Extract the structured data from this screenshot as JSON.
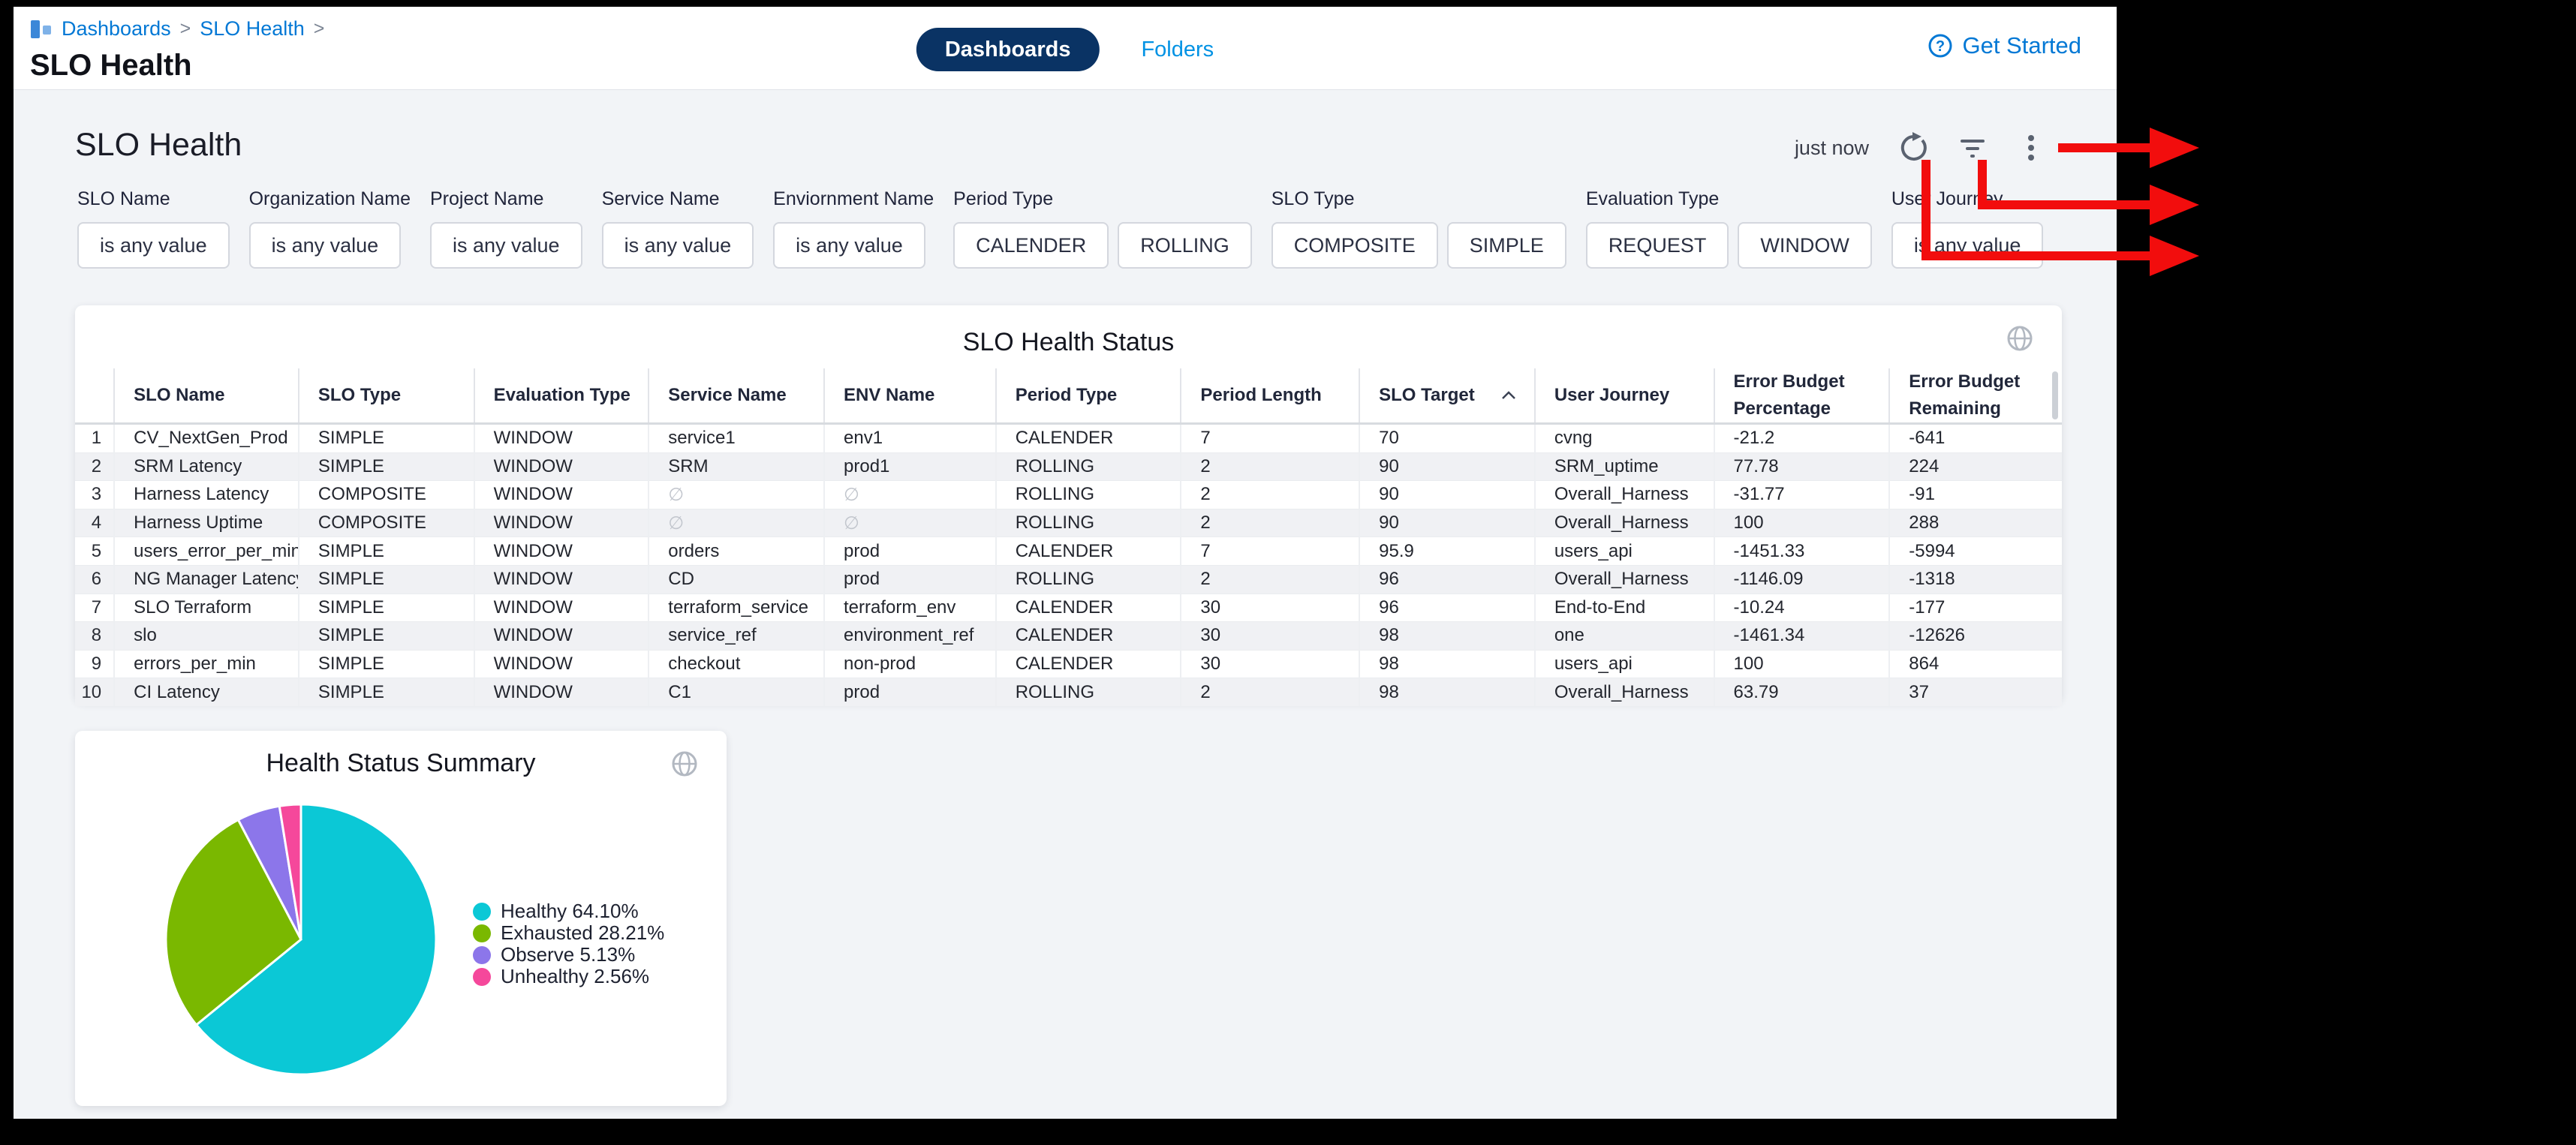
{
  "header": {
    "breadcrumb": {
      "items": [
        "Dashboards",
        "SLO Health"
      ],
      "separator": ">"
    },
    "page_title": "SLO Health",
    "tabs": [
      {
        "label": "Dashboards",
        "active": true
      },
      {
        "label": "Folders",
        "active": false
      }
    ],
    "get_started_label": "Get Started"
  },
  "toolbar": {
    "dashboard_title": "SLO Health",
    "refreshed_label": "just now",
    "icons": [
      "refresh-icon",
      "filter-icon",
      "kebab-menu-icon"
    ]
  },
  "filters": {
    "groups": [
      {
        "label": "SLO Name",
        "chips": [
          "is any value"
        ]
      },
      {
        "label": "Organization Name",
        "chips": [
          "is any value"
        ]
      },
      {
        "label": "Project Name",
        "chips": [
          "is any value"
        ]
      },
      {
        "label": "Service Name",
        "chips": [
          "is any value"
        ]
      },
      {
        "label": "Enviornment Name",
        "chips": [
          "is any value"
        ]
      },
      {
        "label": "Period Type",
        "chips": [
          "CALENDER",
          "ROLLING"
        ]
      },
      {
        "label": "SLO Type",
        "chips": [
          "COMPOSITE",
          "SIMPLE"
        ]
      },
      {
        "label": "Evaluation Type",
        "chips": [
          "REQUEST",
          "WINDOW"
        ]
      },
      {
        "label": "User Journey",
        "chips": [
          "is any value"
        ]
      }
    ]
  },
  "table": {
    "title": "SLO Health Status",
    "columns": [
      {
        "lines": [
          "SLO Name"
        ]
      },
      {
        "lines": [
          "SLO Type"
        ]
      },
      {
        "lines": [
          "Evaluation Type"
        ]
      },
      {
        "lines": [
          "Service Name"
        ]
      },
      {
        "lines": [
          "ENV Name"
        ]
      },
      {
        "lines": [
          "Period Type"
        ]
      },
      {
        "lines": [
          "Period Length"
        ]
      },
      {
        "lines": [
          "SLO Target"
        ],
        "sort": "asc"
      },
      {
        "lines": [
          "User Journey"
        ]
      },
      {
        "lines": [
          "Error Budget",
          "Percentage"
        ]
      },
      {
        "lines": [
          "Error Budget",
          "Remaining"
        ]
      }
    ],
    "rows": [
      [
        "CV_NextGen_Prod",
        "SIMPLE",
        "WINDOW",
        "service1",
        "env1",
        "CALENDER",
        "7",
        "70",
        "cvng",
        "-21.2",
        "-641"
      ],
      [
        "SRM Latency",
        "SIMPLE",
        "WINDOW",
        "SRM",
        "prod1",
        "ROLLING",
        "2",
        "90",
        "SRM_uptime",
        "77.78",
        "224"
      ],
      [
        "Harness Latency",
        "COMPOSITE",
        "WINDOW",
        "∅",
        "∅",
        "ROLLING",
        "2",
        "90",
        "Overall_Harness",
        "-31.77",
        "-91"
      ],
      [
        "Harness Uptime",
        "COMPOSITE",
        "WINDOW",
        "∅",
        "∅",
        "ROLLING",
        "2",
        "90",
        "Overall_Harness",
        "100",
        "288"
      ],
      [
        "users_error_per_min",
        "SIMPLE",
        "WINDOW",
        "orders",
        "prod",
        "CALENDER",
        "7",
        "95.9",
        "users_api",
        "-1451.33",
        "-5994"
      ],
      [
        "NG Manager Latency",
        "SIMPLE",
        "WINDOW",
        "CD",
        "prod",
        "ROLLING",
        "2",
        "96",
        "Overall_Harness",
        "-1146.09",
        "-1318"
      ],
      [
        "SLO Terraform",
        "SIMPLE",
        "WINDOW",
        "terraform_service",
        "terraform_env",
        "CALENDER",
        "30",
        "96",
        "End-to-End",
        "-10.24",
        "-177"
      ],
      [
        "slo",
        "SIMPLE",
        "WINDOW",
        "service_ref",
        "environment_ref",
        "CALENDER",
        "30",
        "98",
        "one",
        "-1461.34",
        "-12626"
      ],
      [
        "errors_per_min",
        "SIMPLE",
        "WINDOW",
        "checkout",
        "non-prod",
        "CALENDER",
        "30",
        "98",
        "users_api",
        "100",
        "864"
      ],
      [
        "CI Latency",
        "SIMPLE",
        "WINDOW",
        "C1",
        "prod",
        "ROLLING",
        "2",
        "98",
        "Overall_Harness",
        "63.79",
        "37"
      ]
    ]
  },
  "chart_data": {
    "type": "pie",
    "title": "Health Status Summary",
    "legend_position": "right",
    "direction": "clockwise",
    "start_angle_deg": 0,
    "slices": [
      {
        "label": "Healthy",
        "value": 64.1,
        "pct_label": "64.10%",
        "color": "#0bc8d6"
      },
      {
        "label": "Exhausted",
        "value": 28.21,
        "pct_label": "28.21%",
        "color": "#7ab800"
      },
      {
        "label": "Observe",
        "value": 5.13,
        "pct_label": "5.13%",
        "color": "#8c76ea"
      },
      {
        "label": "Unhealthy",
        "value": 2.56,
        "pct_label": "2.56%",
        "color": "#f5489b"
      }
    ]
  },
  "annotations": {
    "arrow_color": "#f20d0d",
    "arrows": [
      "points-to-kebab-menu",
      "points-to-filter-icon",
      "points-to-refresh-icon"
    ]
  },
  "colors": {
    "link_blue": "#0278d5",
    "tab_link_blue": "#0092e4",
    "active_pill": "#0a3364",
    "page_bg": "#f2f4f7"
  }
}
